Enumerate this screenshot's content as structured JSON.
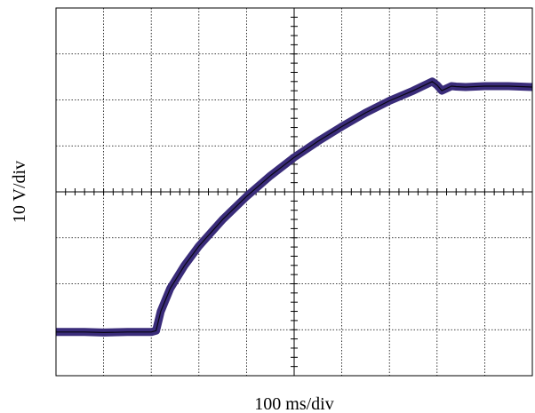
{
  "chart_data": {
    "type": "line",
    "title": "",
    "xlabel": "100 ms/div",
    "ylabel": "10 V/div",
    "x_units": "division",
    "y_units": "division",
    "xlim": [
      0,
      10
    ],
    "ylim": [
      -4,
      4
    ],
    "grid": true,
    "grid_divisions": {
      "x": 10,
      "y": 8
    },
    "minor_ticks_per_div": 5,
    "series": [
      {
        "color": "#3a2c7a",
        "x": [
          0,
          0.6,
          1.0,
          1.5,
          2.0,
          2.1,
          2.2,
          2.4,
          2.7,
          3.0,
          3.5,
          4.0,
          4.5,
          5.0,
          5.5,
          6.0,
          6.5,
          7.0,
          7.5,
          7.9,
          8.0,
          8.1,
          8.2,
          8.3,
          8.4,
          8.6,
          9.0,
          9.5,
          10.0
        ],
        "y": [
          -3.05,
          -3.05,
          -3.06,
          -3.05,
          -3.05,
          -3.02,
          -2.6,
          -2.1,
          -1.6,
          -1.18,
          -0.6,
          -0.1,
          0.35,
          0.75,
          1.1,
          1.42,
          1.72,
          1.98,
          2.2,
          2.4,
          2.32,
          2.2,
          2.25,
          2.3,
          2.29,
          2.28,
          2.3,
          2.3,
          2.28
        ]
      }
    ]
  }
}
